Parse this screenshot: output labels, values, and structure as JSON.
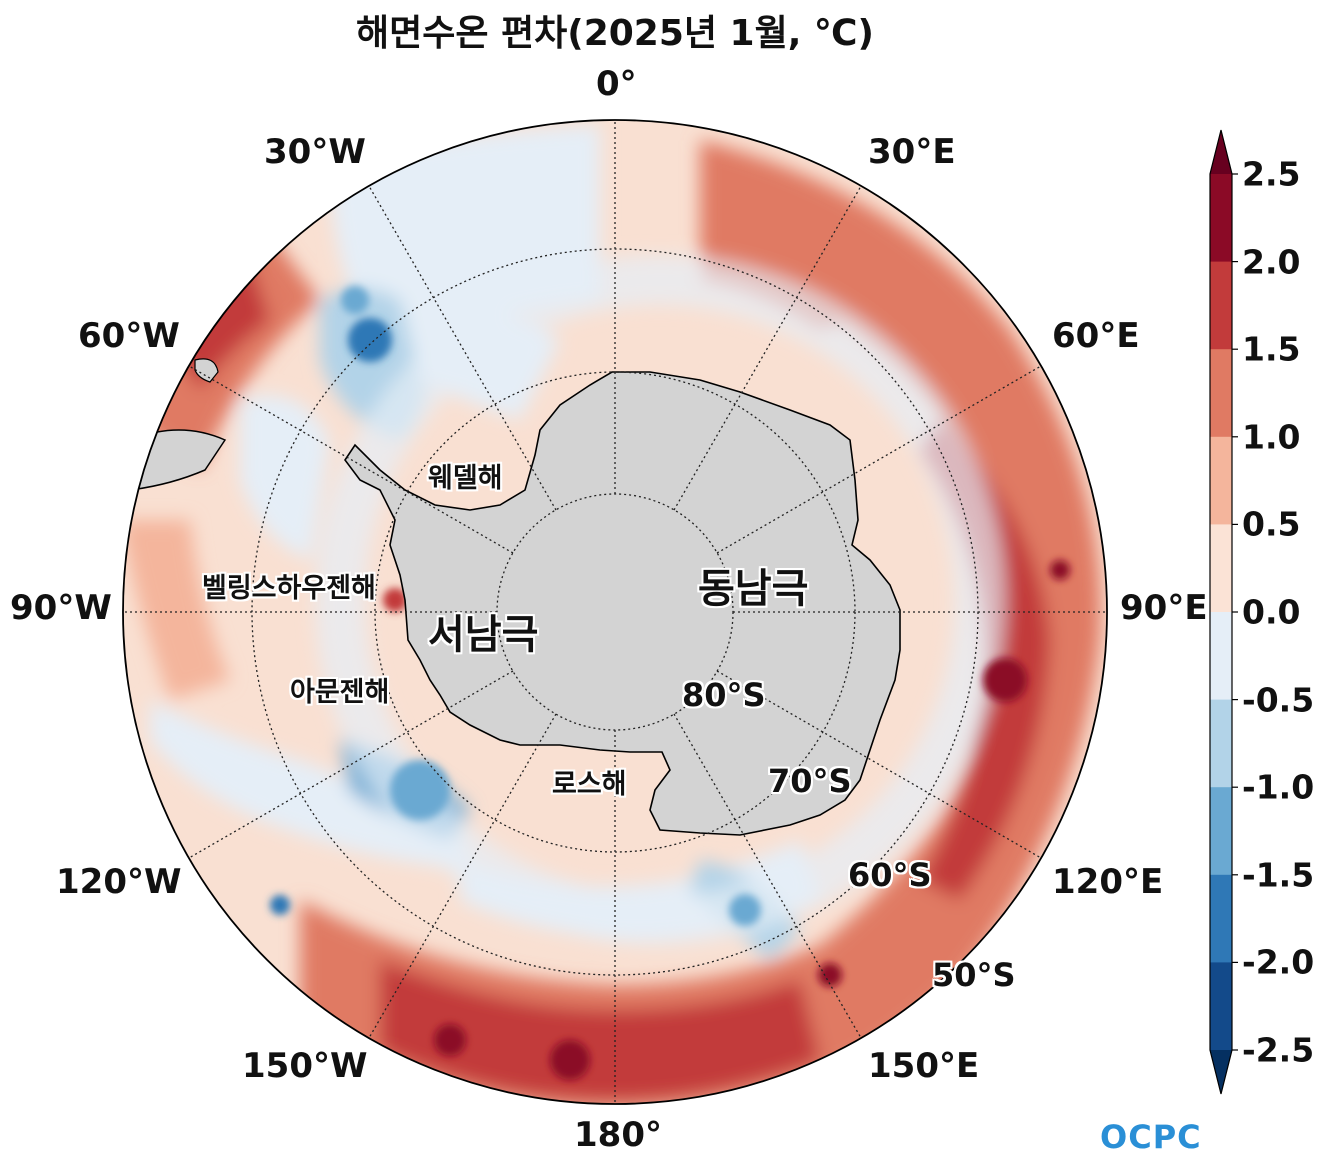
{
  "title": "해면수온 편차(2025년 1월, ℃)",
  "longitude_labels": {
    "lon_0": "0°",
    "lon_30e": "30°E",
    "lon_60e": "60°E",
    "lon_90e": "90°E",
    "lon_120e": "120°E",
    "lon_150e": "150°E",
    "lon_180": "180°",
    "lon_150w": "150°W",
    "lon_120w": "120°W",
    "lon_90w": "90°W",
    "lon_60w": "60°W",
    "lon_30w": "30°W"
  },
  "latitude_labels": {
    "lat_80s": "80°S",
    "lat_70s": "70°S",
    "lat_60s": "60°S",
    "lat_50s": "50°S"
  },
  "regions": {
    "weddell": "웨델해",
    "bellingshausen": "벨링스하우젠해",
    "amundsen": "아문젠해",
    "ross": "로스해",
    "west_antarctica": "서남극",
    "east_antarctica": "동남극"
  },
  "colorbar": {
    "ticks": [
      "2.5",
      "2.0",
      "1.5",
      "1.0",
      "0.5",
      "0.0",
      "-0.5",
      "-1.0",
      "-1.5",
      "-2.0",
      "-2.5"
    ],
    "colors": [
      "#8b0a26",
      "#c23b3b",
      "#e07a63",
      "#f4b59c",
      "#fbe3d6",
      "#e5eef7",
      "#b2d3e8",
      "#6aa9d2",
      "#2f78b6",
      "#134a8a"
    ],
    "extend_max_color": "#67001f",
    "extend_min_color": "#053061"
  },
  "logo": "OCPC",
  "colors": {
    "land": "#d3d3d3",
    "warm_strong": "#c23b3b",
    "warm": "#e07a63",
    "cool": "#6aa9d2"
  }
}
